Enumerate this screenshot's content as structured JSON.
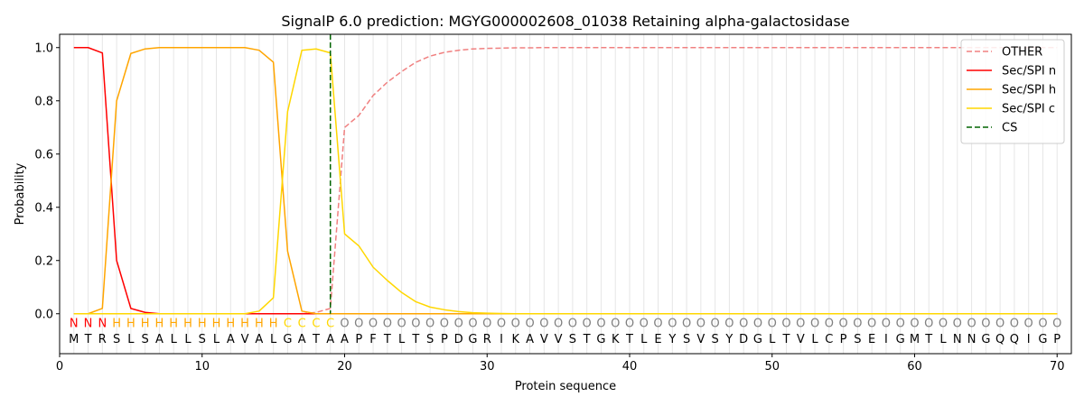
{
  "chart_data": {
    "type": "line",
    "title": "SignalP 6.0 prediction: MGYG000002608_01038 Retaining alpha-galactosidase",
    "xlabel": "Protein sequence",
    "ylabel": "Probability",
    "xlim": [
      0,
      71
    ],
    "ylim": [
      -0.15,
      1.05
    ],
    "xticks": [
      0,
      10,
      20,
      30,
      40,
      50,
      60,
      70
    ],
    "yticks": [
      0.0,
      0.2,
      0.4,
      0.6,
      0.8,
      1.0
    ],
    "xtick_labels": [
      "0",
      "10",
      "20",
      "30",
      "40",
      "50",
      "60",
      "70"
    ],
    "ytick_labels": [
      "0.0",
      "0.2",
      "0.4",
      "0.6",
      "0.8",
      "1.0"
    ],
    "grid": "vertical lines at each residue position",
    "legend": "top-right",
    "sequence": [
      "M",
      "T",
      "R",
      "S",
      "L",
      "S",
      "A",
      "L",
      "L",
      "S",
      "L",
      "A",
      "V",
      "A",
      "L",
      "G",
      "A",
      "T",
      "A",
      "A",
      "P",
      "F",
      "T",
      "L",
      "T",
      "S",
      "P",
      "D",
      "G",
      "R",
      "I",
      "K",
      "A",
      "V",
      "V",
      "S",
      "T",
      "G",
      "K",
      "T",
      "L",
      "E",
      "Y",
      "S",
      "V",
      "S",
      "Y",
      "D",
      "G",
      "L",
      "T",
      "V",
      "L",
      "C",
      "P",
      "S",
      "E",
      "I",
      "G",
      "M",
      "T",
      "L",
      "N",
      "N",
      "G",
      "Q",
      "Q",
      "I",
      "G",
      "P"
    ],
    "labels": [
      "N",
      "N",
      "N",
      "H",
      "H",
      "H",
      "H",
      "H",
      "H",
      "H",
      "H",
      "H",
      "H",
      "H",
      "H",
      "C",
      "C",
      "C",
      "C",
      "O",
      "O",
      "O",
      "O",
      "O",
      "O",
      "O",
      "O",
      "O",
      "O",
      "O",
      "O",
      "O",
      "O",
      "O",
      "O",
      "O",
      "O",
      "O",
      "O",
      "O",
      "O",
      "O",
      "O",
      "O",
      "O",
      "O",
      "O",
      "O",
      "O",
      "O",
      "O",
      "O",
      "O",
      "O",
      "O",
      "O",
      "O",
      "O",
      "O",
      "O",
      "O",
      "O",
      "O",
      "O",
      "O",
      "O",
      "O",
      "O",
      "O",
      "O"
    ],
    "label_colors": {
      "N": "#ff0000",
      "H": "#ffa500",
      "C": "#ffd700",
      "O": "#808080"
    },
    "series": [
      {
        "name": "OTHER",
        "color": "#f08080",
        "dash": true,
        "values": [
          0.0,
          0.0,
          0.0,
          0.0,
          0.0,
          0.0,
          0.0,
          0.0,
          0.0,
          0.0,
          0.0,
          0.0,
          0.0,
          0.0,
          0.0,
          0.0,
          0.0,
          0.005,
          0.02,
          0.7,
          0.745,
          0.82,
          0.87,
          0.91,
          0.945,
          0.968,
          0.982,
          0.99,
          0.995,
          0.997,
          0.998,
          0.999,
          0.999,
          1.0,
          1.0,
          1.0,
          1.0,
          1.0,
          1.0,
          1.0,
          1.0,
          1.0,
          1.0,
          1.0,
          1.0,
          1.0,
          1.0,
          1.0,
          1.0,
          1.0,
          1.0,
          1.0,
          1.0,
          1.0,
          1.0,
          1.0,
          1.0,
          1.0,
          1.0,
          1.0,
          1.0,
          1.0,
          1.0,
          1.0,
          1.0,
          1.0,
          1.0,
          1.0,
          1.0,
          1.0
        ]
      },
      {
        "name": "Sec/SPI n",
        "color": "#ff0000",
        "dash": false,
        "values": [
          1.0,
          1.0,
          0.98,
          0.2,
          0.02,
          0.005,
          0.0,
          0.0,
          0.0,
          0.0,
          0.0,
          0.0,
          0.0,
          0.0,
          0.0,
          0.0,
          0.0,
          0.0,
          0.0,
          0.0,
          0.0,
          0.0,
          0.0,
          0.0,
          0.0,
          0.0,
          0.0,
          0.0,
          0.0,
          0.0,
          0.0,
          0.0,
          0.0,
          0.0,
          0.0,
          0.0,
          0.0,
          0.0,
          0.0,
          0.0,
          0.0,
          0.0,
          0.0,
          0.0,
          0.0,
          0.0,
          0.0,
          0.0,
          0.0,
          0.0,
          0.0,
          0.0,
          0.0,
          0.0,
          0.0,
          0.0,
          0.0,
          0.0,
          0.0,
          0.0,
          0.0,
          0.0,
          0.0,
          0.0,
          0.0,
          0.0,
          0.0,
          0.0,
          0.0,
          0.0
        ]
      },
      {
        "name": "Sec/SPI h",
        "color": "#ffa500",
        "dash": false,
        "values": [
          0.0,
          0.0,
          0.02,
          0.8,
          0.978,
          0.995,
          1.0,
          1.0,
          1.0,
          1.0,
          1.0,
          1.0,
          1.0,
          0.99,
          0.945,
          0.235,
          0.01,
          0.0,
          0.0,
          0.0,
          0.0,
          0.0,
          0.0,
          0.0,
          0.0,
          0.0,
          0.0,
          0.0,
          0.0,
          0.0,
          0.0,
          0.0,
          0.0,
          0.0,
          0.0,
          0.0,
          0.0,
          0.0,
          0.0,
          0.0,
          0.0,
          0.0,
          0.0,
          0.0,
          0.0,
          0.0,
          0.0,
          0.0,
          0.0,
          0.0,
          0.0,
          0.0,
          0.0,
          0.0,
          0.0,
          0.0,
          0.0,
          0.0,
          0.0,
          0.0,
          0.0,
          0.0,
          0.0,
          0.0,
          0.0,
          0.0,
          0.0,
          0.0,
          0.0,
          0.0
        ]
      },
      {
        "name": "Sec/SPI c",
        "color": "#ffd700",
        "dash": false,
        "values": [
          0.0,
          0.0,
          0.0,
          0.0,
          0.0,
          0.0,
          0.0,
          0.0,
          0.0,
          0.0,
          0.0,
          0.0,
          0.0,
          0.01,
          0.06,
          0.76,
          0.99,
          0.995,
          0.98,
          0.3,
          0.255,
          0.175,
          0.125,
          0.08,
          0.045,
          0.025,
          0.015,
          0.008,
          0.004,
          0.002,
          0.001,
          0.0,
          0.0,
          0.0,
          0.0,
          0.0,
          0.0,
          0.0,
          0.0,
          0.0,
          0.0,
          0.0,
          0.0,
          0.0,
          0.0,
          0.0,
          0.0,
          0.0,
          0.0,
          0.0,
          0.0,
          0.0,
          0.0,
          0.0,
          0.0,
          0.0,
          0.0,
          0.0,
          0.0,
          0.0,
          0.0,
          0.0,
          0.0,
          0.0,
          0.0,
          0.0,
          0.0,
          0.0,
          0.0,
          0.0
        ]
      }
    ],
    "cs": {
      "name": "CS",
      "x": 19,
      "color": "#006400"
    }
  }
}
